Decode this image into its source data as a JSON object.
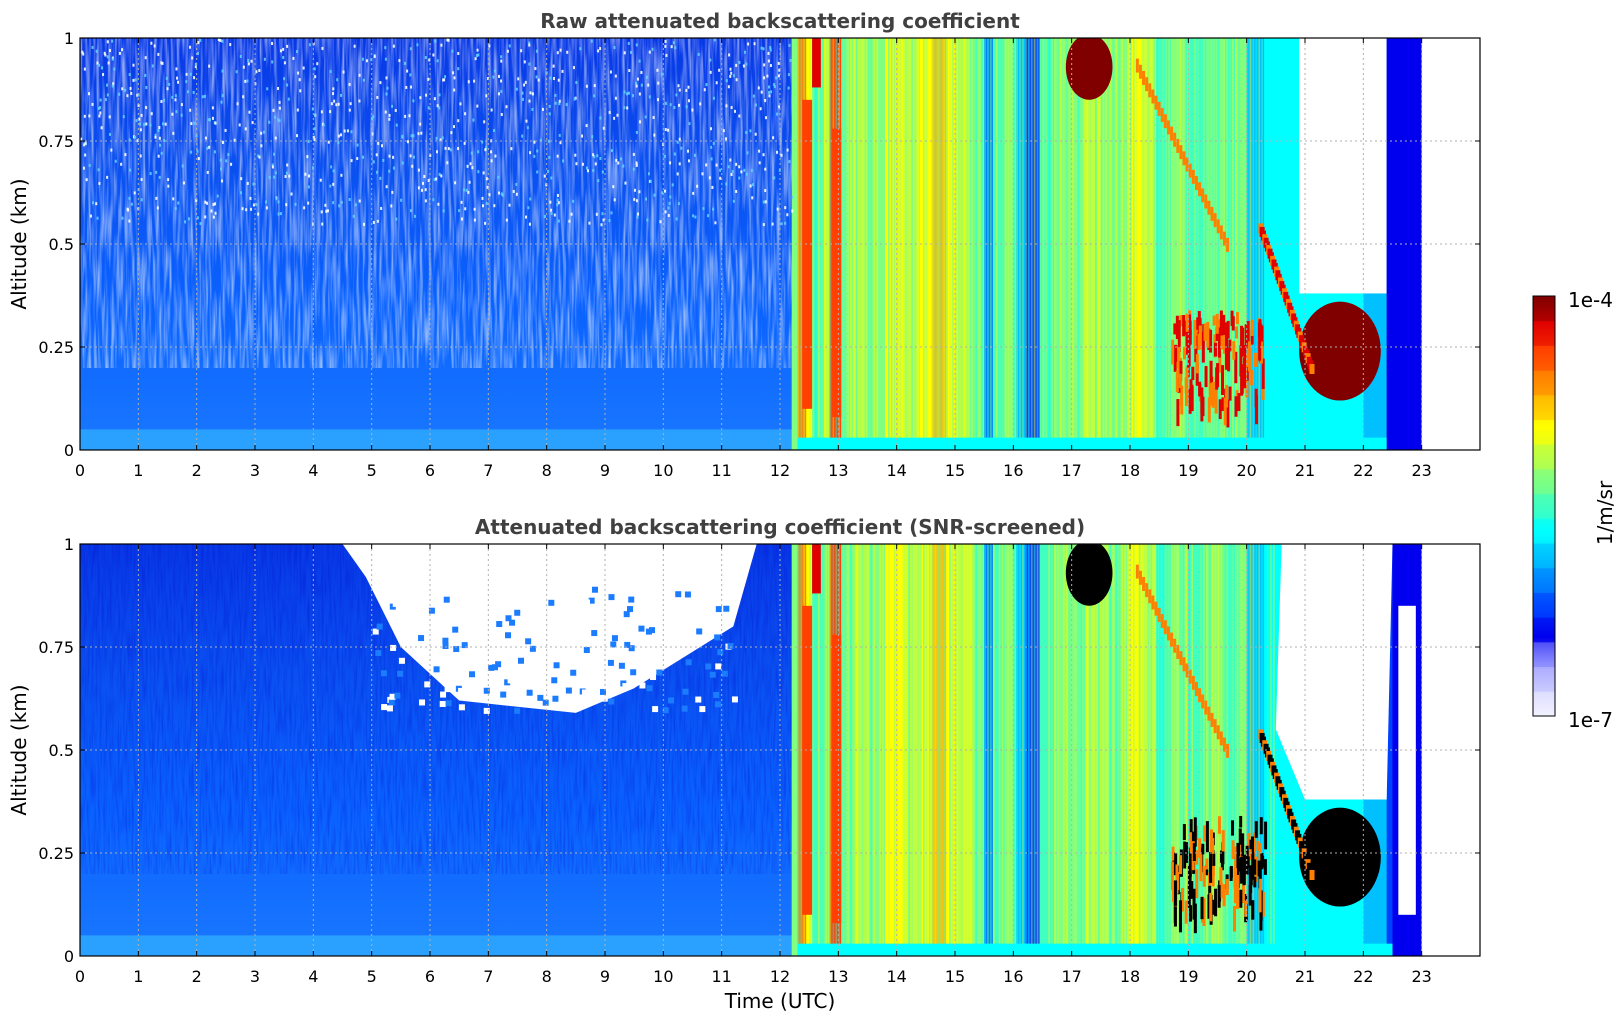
{
  "figure": {
    "xlabel": "Time (UTC)",
    "colorbar": {
      "label": "1/m/sr",
      "max_label": "1e-4",
      "min_label": "1e-7",
      "scale": "log",
      "colors": [
        "#f2f2ff",
        "#c8c8ff",
        "#8c8cff",
        "#0000ee",
        "#0040ff",
        "#0080ff",
        "#00c0ff",
        "#00ffff",
        "#40ffc0",
        "#80ff80",
        "#c0ff40",
        "#ffff00",
        "#ffc000",
        "#ff8000",
        "#ff4000",
        "#e00000",
        "#800000"
      ]
    }
  },
  "chart_data": [
    {
      "type": "heatmap",
      "id": "raw",
      "title": "Raw attenuated backscattering coefficient",
      "xlabel": "",
      "ylabel": "Altitude (km)",
      "xlim": [
        0,
        24
      ],
      "ylim": [
        0,
        1
      ],
      "xticks": [
        0,
        1,
        2,
        3,
        4,
        5,
        6,
        7,
        8,
        9,
        10,
        11,
        12,
        13,
        14,
        15,
        16,
        17,
        18,
        19,
        20,
        21,
        22,
        23
      ],
      "yticks": [
        0,
        0.25,
        0.5,
        0.75,
        1
      ],
      "ytick_labels": [
        "0",
        "0.25",
        "0.5",
        "0.75",
        "1"
      ],
      "grid": true,
      "data_end_hour": 23,
      "regions": [
        {
          "x": [
            0,
            12.3
          ],
          "y": [
            0,
            1
          ],
          "level": "low (~1e-6)",
          "color": "#0a6cff"
        },
        {
          "x": [
            12.3,
            13.0
          ],
          "y": [
            0.1,
            1
          ],
          "level": "high (~1e-4)",
          "color": "#ff3000"
        },
        {
          "x": [
            13.0,
            16.7
          ],
          "y": [
            0,
            1
          ],
          "level": "mid (~1e-5)",
          "color": "#9cff60"
        },
        {
          "x": [
            16.9,
            17.7
          ],
          "y": [
            0.82,
            1
          ],
          "level": "very high",
          "color": "#a00000"
        },
        {
          "x": [
            18.5,
            22.4
          ],
          "y": [
            0.05,
            0.38
          ],
          "level": "high",
          "color": "#d00000"
        },
        {
          "x": [
            20.9,
            22.4
          ],
          "y": [
            0.38,
            1
          ],
          "level": "no data",
          "color": "#ffffff"
        }
      ]
    },
    {
      "type": "heatmap",
      "id": "screened",
      "title": "Attenuated backscattering coefficient (SNR-screened)",
      "xlabel": "Time (UTC)",
      "ylabel": "Altitude (km)",
      "xlim": [
        0,
        24
      ],
      "ylim": [
        0,
        1
      ],
      "xticks": [
        0,
        1,
        2,
        3,
        4,
        5,
        6,
        7,
        8,
        9,
        10,
        11,
        12,
        13,
        14,
        15,
        16,
        17,
        18,
        19,
        20,
        21,
        22,
        23
      ],
      "yticks": [
        0,
        0.25,
        0.5,
        0.75,
        1
      ],
      "ytick_labels": [
        "0",
        "0.25",
        "0.5",
        "0.75",
        "1"
      ],
      "grid": true,
      "data_end_hour": 23,
      "regions": [
        {
          "x": [
            0,
            12.3
          ],
          "y": [
            0,
            1
          ],
          "level": "low (~1e-6)",
          "color": "#0a6cff"
        },
        {
          "x": [
            4.5,
            11.5
          ],
          "y": [
            0.6,
            1
          ],
          "level": "screened (no data)",
          "color": "#ffffff"
        },
        {
          "x": [
            12.3,
            13.0
          ],
          "y": [
            0.1,
            1
          ],
          "level": "high (~1e-4)",
          "color": "#ff3000"
        },
        {
          "x": [
            13.0,
            16.7
          ],
          "y": [
            0,
            1
          ],
          "level": "mid (~1e-5)",
          "color": "#9cff60"
        },
        {
          "x": [
            16.9,
            17.7
          ],
          "y": [
            0.82,
            1
          ],
          "level": "saturated",
          "color": "#000000"
        },
        {
          "x": [
            18.5,
            22.4
          ],
          "y": [
            0.05,
            0.38
          ],
          "level": "saturated",
          "color": "#000000"
        },
        {
          "x": [
            20.5,
            22.4
          ],
          "y": [
            0.38,
            1
          ],
          "level": "screened (no data)",
          "color": "#ffffff"
        }
      ]
    }
  ]
}
